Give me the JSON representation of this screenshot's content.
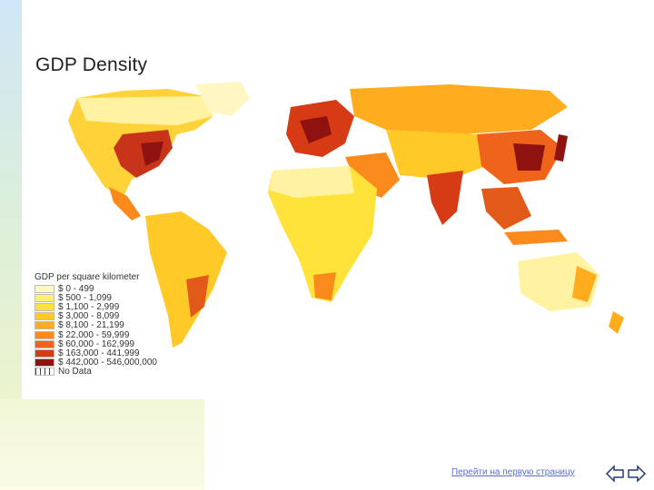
{
  "slide": {
    "title": "GDP Density",
    "footer_link": "Перейти на первую страницу"
  },
  "legend": {
    "title": "GDP per square kilometer",
    "items": [
      {
        "label": "$ 0 - 499",
        "color": "#fff6c2"
      },
      {
        "label": "$ 500 - 1,099",
        "color": "#fff07a"
      },
      {
        "label": "$ 1,100 - 2,999",
        "color": "#ffe23a"
      },
      {
        "label": "$ 3,000 - 8,099",
        "color": "#ffc928"
      },
      {
        "label": "$ 8,100 - 21,199",
        "color": "#ffad1f"
      },
      {
        "label": "$ 22,000 - 59,999",
        "color": "#fb8a1c"
      },
      {
        "label": "$ 60,000 - 162,999",
        "color": "#f0631a"
      },
      {
        "label": "$ 163,000 - 441,999",
        "color": "#d63b16"
      },
      {
        "label": "$ 442,000 - 546,000,000",
        "color": "#8e1210"
      },
      {
        "label": "No Data",
        "color": "nodata"
      }
    ]
  },
  "nav": {
    "back_icon": "arrow-left-icon",
    "forward_icon": "arrow-right-icon"
  }
}
